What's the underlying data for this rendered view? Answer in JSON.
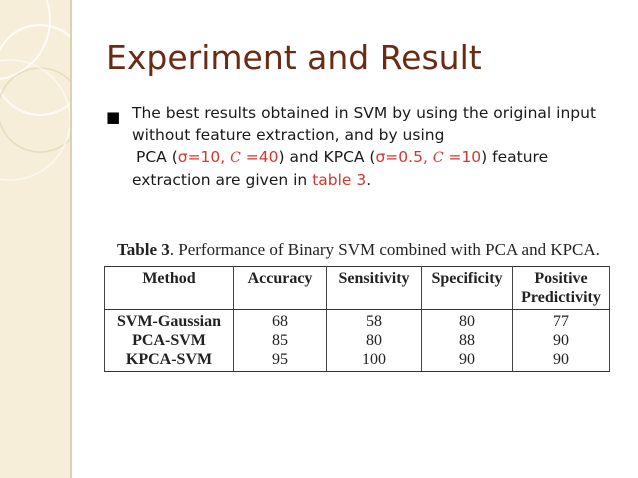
{
  "title": "Experiment and Result",
  "bullet": {
    "line1": "The best results obtained in SVM by using the original input",
    "line2": "without feature extraction, and by using",
    "line3_pca": "PCA (",
    "line3_sigma1": "σ=10, ",
    "line3_c1": "C",
    "line3_c1val": " =40",
    "line3_mid": ") and KPCA (",
    "line3_sigma2": "σ=0.5, ",
    "line3_c2": "C",
    "line3_c2val": " =10",
    "line3_end": ") feature",
    "line4_pre": "extraction are given in ",
    "line4_link": "table 3",
    "line4_post": "."
  },
  "table": {
    "caption_label": "Table 3",
    "caption_text": ". Performance of Binary SVM combined with PCA and KPCA.",
    "headers": [
      "Method",
      "Accuracy",
      "Sensitivity",
      "Specificity",
      "Positive Predictivity"
    ],
    "rows": [
      [
        "SVM-Gaussian",
        "68",
        "58",
        "80",
        "77"
      ],
      [
        "PCA-SVM",
        "85",
        "80",
        "88",
        "90"
      ],
      [
        "KPCA-SVM",
        "95",
        "100",
        "90",
        "90"
      ]
    ]
  },
  "colors": {
    "title": "#6b2a13",
    "highlight": "#d8342c",
    "sidebar": "#f6eed8"
  }
}
